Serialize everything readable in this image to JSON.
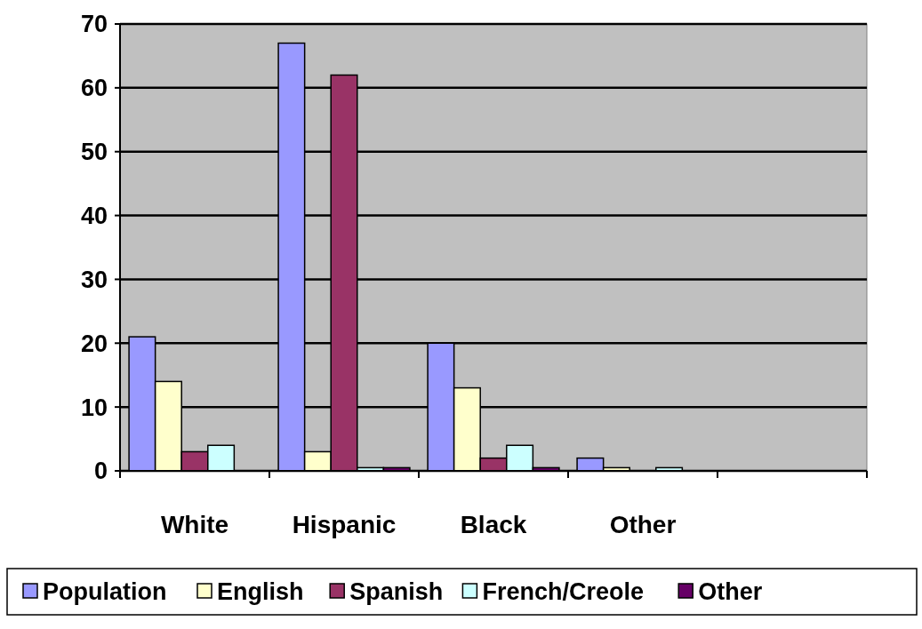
{
  "chart_data": {
    "type": "bar",
    "categories": [
      "White",
      "Hispanic",
      "Black",
      "Other",
      null
    ],
    "series": [
      {
        "name": "Population",
        "color": "#9999ff",
        "values": [
          21,
          67,
          20,
          2,
          null
        ]
      },
      {
        "name": "English",
        "color": "#ffffcc",
        "values": [
          14,
          3,
          13,
          0.5,
          null
        ]
      },
      {
        "name": "Spanish",
        "color": "#993366",
        "values": [
          3,
          62,
          2,
          0,
          null
        ]
      },
      {
        "name": "French/Creole",
        "color": "#ccffff",
        "values": [
          4,
          0.5,
          4,
          0.5,
          null
        ]
      },
      {
        "name": "Other",
        "color": "#660066",
        "values": [
          0,
          0.5,
          0.5,
          0,
          null
        ]
      }
    ],
    "ylim": [
      0,
      70
    ],
    "yticks": [
      0,
      10,
      20,
      30,
      40,
      50,
      60,
      70
    ],
    "grid": "y",
    "legend": "bottom"
  }
}
